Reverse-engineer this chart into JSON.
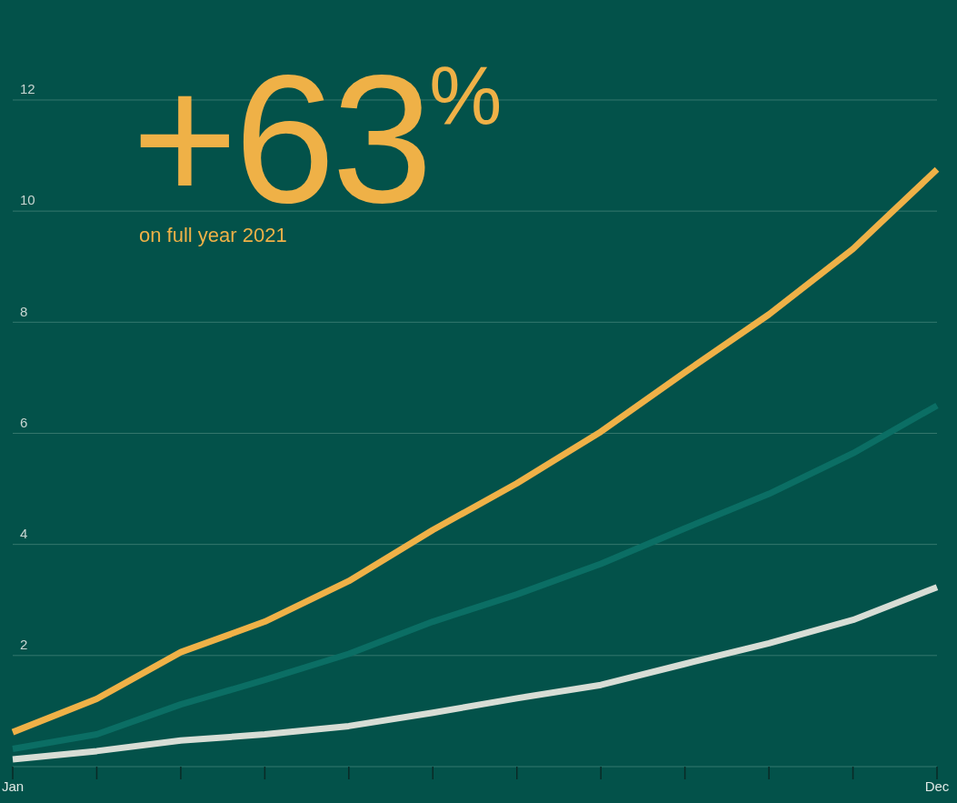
{
  "chart_data": {
    "type": "line",
    "categories": [
      "Jan",
      null,
      null,
      null,
      null,
      null,
      null,
      null,
      null,
      null,
      null,
      "Dec"
    ],
    "series": [
      {
        "color": "#efb147",
        "values": [
          0.62,
          1.22,
          2.06,
          2.61,
          3.34,
          4.26,
          5.1,
          6.03,
          7.1,
          8.14,
          9.32,
          10.75
        ]
      },
      {
        "color": "#0b6e64",
        "values": [
          0.32,
          0.58,
          1.12,
          1.56,
          2.03,
          2.61,
          3.1,
          3.65,
          4.29,
          4.91,
          5.64,
          6.5
        ]
      },
      {
        "color": "#d7ddd5",
        "values": [
          0.13,
          0.28,
          0.47,
          0.58,
          0.73,
          0.97,
          1.23,
          1.47,
          1.85,
          2.22,
          2.64,
          3.23
        ]
      }
    ],
    "ylim": [
      0,
      13.8
    ],
    "yticks": [
      2,
      4,
      6,
      8,
      10,
      12
    ],
    "grid": "y",
    "marker": "none",
    "line_style": "solid",
    "annotations": [
      "+63$^{%}$",
      "on full year 2021"
    ]
  }
}
